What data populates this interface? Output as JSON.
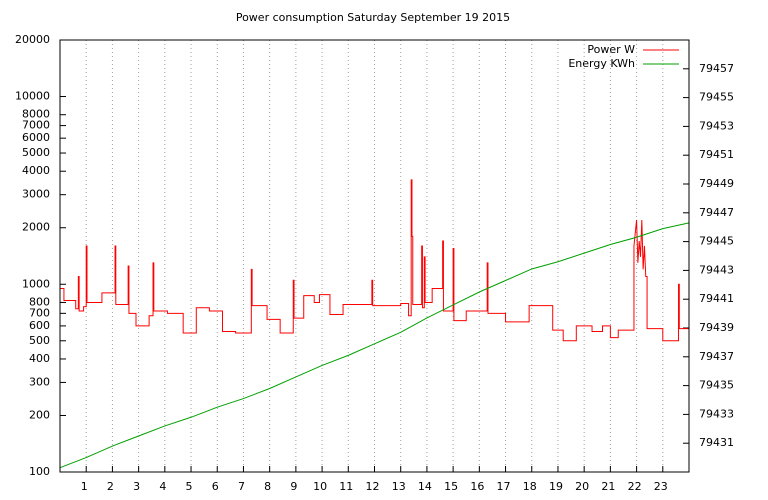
{
  "chart_data": {
    "type": "line",
    "title": "Power consumption Saturday September 19 2015",
    "xlim": [
      0,
      24
    ],
    "xticks": [
      1,
      2,
      3,
      4,
      5,
      6,
      7,
      8,
      9,
      10,
      11,
      12,
      13,
      14,
      15,
      16,
      17,
      18,
      19,
      20,
      21,
      22,
      23
    ],
    "ylim": [
      100,
      20000
    ],
    "ylog": true,
    "yticks": [
      100,
      200,
      300,
      400,
      500,
      600,
      700,
      800,
      1000,
      2000,
      3000,
      4000,
      5000,
      6000,
      7000,
      8000,
      10000,
      20000
    ],
    "y2lim": [
      79429,
      79459
    ],
    "y2ticks": [
      79431,
      79433,
      79435,
      79437,
      79439,
      79441,
      79443,
      79445,
      79447,
      79449,
      79451,
      79453,
      79455,
      79457
    ],
    "grid": "x",
    "legend": "top-right",
    "series": [
      {
        "name": "Power W",
        "color": "#ff0000",
        "axis": "y",
        "x": [
          0,
          0.15,
          0.15,
          0.6,
          0.6,
          0.7,
          0.7,
          0.73,
          0.73,
          0.9,
          0.9,
          1.0,
          1.0,
          1.03,
          1.03,
          1.6,
          1.6,
          2.1,
          2.1,
          2.13,
          2.13,
          2.6,
          2.6,
          2.63,
          2.63,
          2.9,
          2.9,
          3.4,
          3.4,
          3.55,
          3.55,
          3.58,
          3.58,
          4.1,
          4.1,
          4.7,
          4.7,
          5.2,
          5.2,
          5.7,
          5.7,
          6.2,
          6.2,
          6.7,
          6.7,
          7.3,
          7.3,
          7.33,
          7.33,
          7.9,
          7.9,
          8.4,
          8.4,
          8.9,
          8.9,
          8.93,
          8.93,
          9.3,
          9.3,
          9.7,
          9.7,
          9.9,
          9.9,
          10.3,
          10.3,
          10.8,
          10.8,
          11.9,
          11.9,
          11.93,
          11.93,
          13.0,
          13.0,
          13.3,
          13.3,
          13.4,
          13.4,
          13.43,
          13.43,
          13.46,
          13.46,
          13.8,
          13.8,
          13.83,
          13.83,
          13.9,
          13.9,
          13.93,
          13.93,
          14.2,
          14.2,
          14.6,
          14.6,
          14.63,
          14.63,
          15.0,
          15.0,
          15.03,
          15.03,
          15.5,
          15.5,
          16.3,
          16.3,
          16.33,
          16.33,
          17.0,
          17.0,
          17.9,
          17.9,
          18.8,
          18.8,
          19.2,
          19.2,
          19.7,
          19.7,
          20.3,
          20.3,
          20.7,
          20.7,
          21.0,
          21.0,
          21.3,
          21.3,
          21.9,
          21.9,
          22.0,
          22.05,
          22.1,
          22.15,
          22.2,
          22.25,
          22.3,
          22.35,
          22.4,
          22.4,
          23.0,
          23.0,
          23.6,
          23.6,
          23.63,
          23.63,
          24
        ],
        "values": [
          950,
          950,
          820,
          820,
          740,
          740,
          1100,
          1100,
          720,
          720,
          760,
          760,
          1600,
          1600,
          800,
          800,
          900,
          900,
          1600,
          1600,
          780,
          780,
          1250,
          1250,
          700,
          700,
          600,
          600,
          680,
          680,
          1300,
          1300,
          720,
          720,
          700,
          700,
          550,
          550,
          750,
          750,
          720,
          720,
          560,
          560,
          550,
          550,
          1200,
          1200,
          770,
          770,
          650,
          650,
          550,
          550,
          1050,
          1050,
          660,
          660,
          870,
          870,
          800,
          800,
          880,
          880,
          690,
          690,
          780,
          780,
          1050,
          1050,
          770,
          770,
          790,
          790,
          680,
          680,
          3600,
          3600,
          1800,
          1800,
          780,
          780,
          1600,
          1600,
          750,
          750,
          1400,
          1400,
          800,
          800,
          950,
          950,
          1700,
          1700,
          720,
          720,
          1550,
          1550,
          640,
          640,
          720,
          720,
          1300,
          1300,
          700,
          700,
          630,
          630,
          770,
          770,
          570,
          570,
          500,
          500,
          600,
          600,
          560,
          560,
          600,
          600,
          520,
          520,
          570,
          570,
          1600,
          2200,
          1300,
          1700,
          1400,
          2200,
          1200,
          1600,
          1100,
          1100,
          580,
          580,
          500,
          500,
          1000,
          1000,
          580,
          580
        ]
      },
      {
        "name": "Energy KWh",
        "color": "#00a000",
        "axis": "y2",
        "x": [
          0,
          1,
          2,
          3,
          4,
          5,
          6,
          7,
          8,
          9,
          10,
          11,
          12,
          13,
          14,
          15,
          16,
          17,
          18,
          19,
          20,
          21,
          22,
          23,
          24
        ],
        "values": [
          79429.3,
          79430.0,
          79430.8,
          79431.5,
          79432.2,
          79432.8,
          79433.5,
          79434.1,
          79434.8,
          79435.6,
          79436.4,
          79437.1,
          79437.9,
          79438.7,
          79439.7,
          79440.6,
          79441.5,
          79442.3,
          79443.1,
          79443.6,
          79444.2,
          79444.8,
          79445.3,
          79445.9,
          79446.3
        ]
      }
    ]
  }
}
